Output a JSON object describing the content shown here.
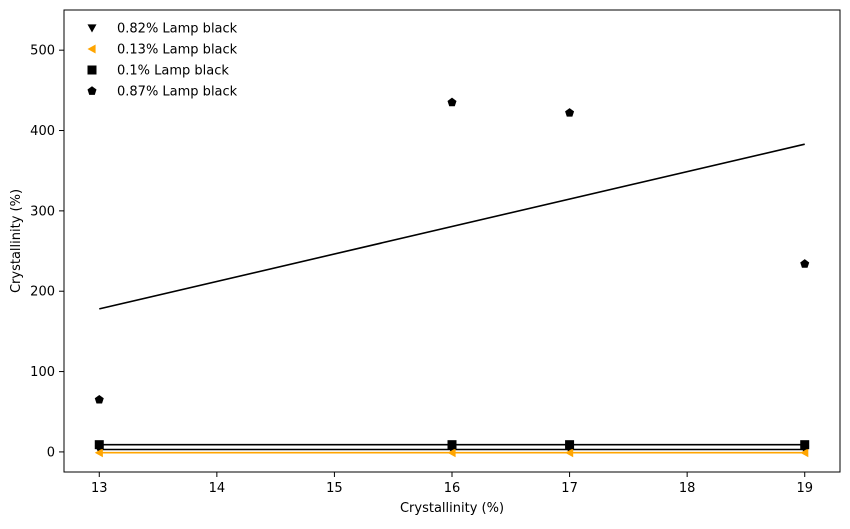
{
  "chart_data": {
    "type": "scatter",
    "xlabel": "Crystallinity (%)",
    "ylabel": "Crystallinity (%)",
    "xlim": [
      12.7,
      19.3
    ],
    "ylim": [
      -25,
      550
    ],
    "xticks": [
      13,
      14,
      15,
      16,
      17,
      18,
      19
    ],
    "yticks": [
      0,
      100,
      200,
      300,
      400,
      500
    ],
    "legend_position": "top-left",
    "grid": false,
    "series": [
      {
        "name": "0.82% Lamp black",
        "marker": "triangle-down",
        "color": "#000000",
        "x": [
          13,
          16,
          17,
          19
        ],
        "y": [
          3,
          3,
          3,
          3
        ],
        "fit": {
          "x": [
            13,
            19
          ],
          "y": [
            3,
            3
          ]
        }
      },
      {
        "name": "0.13% Lamp black",
        "marker": "triangle-left",
        "color": "#FFA500",
        "x": [
          13,
          16,
          17,
          19
        ],
        "y": [
          -1,
          -1,
          -1,
          -1
        ],
        "fit": {
          "x": [
            13,
            19
          ],
          "y": [
            -1,
            -1
          ]
        }
      },
      {
        "name": "0.1% Lamp black",
        "marker": "square",
        "color": "#000000",
        "x": [
          13,
          16,
          17,
          19
        ],
        "y": [
          9,
          9,
          9,
          9
        ],
        "fit": {
          "x": [
            13,
            19
          ],
          "y": [
            9,
            9
          ]
        }
      },
      {
        "name": "0.87% Lamp black",
        "marker": "pentagon",
        "color": "#000000",
        "x": [
          13,
          16,
          17,
          19
        ],
        "y": [
          65,
          435,
          422,
          234
        ],
        "fit": {
          "x": [
            13,
            19
          ],
          "y": [
            178,
            383
          ]
        }
      }
    ]
  }
}
